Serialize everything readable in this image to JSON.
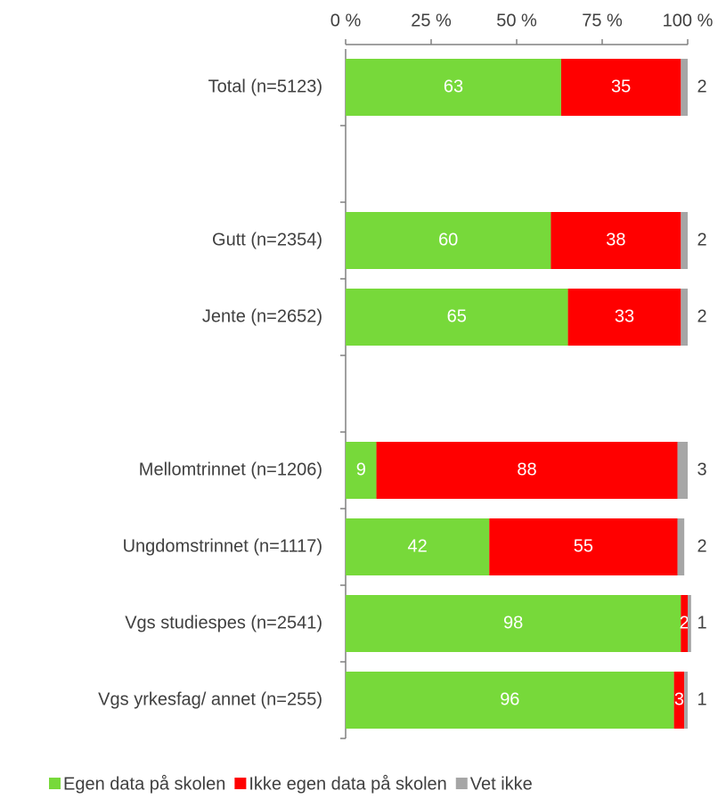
{
  "chart_data": {
    "type": "stacked_barh",
    "categories": [
      "Total (n=5123)",
      null,
      "Gutt (n=2354)",
      "Jente (n=2652)",
      null,
      "Mellomtrinnet (n=1206)",
      "Ungdomstrinnet (n=1117)",
      "Vgs studiespes (n=2541)",
      "Vgs yrkesfag/ annet (n=255)"
    ],
    "series": [
      {
        "name": "Egen data på skolen",
        "color": "#77d93a",
        "values": [
          63,
          null,
          60,
          65,
          null,
          9,
          42,
          98,
          96
        ]
      },
      {
        "name": "Ikke egen data på skolen",
        "color": "#ff0000",
        "values": [
          35,
          null,
          38,
          33,
          null,
          88,
          55,
          2,
          3
        ]
      },
      {
        "name": "Vet ikke",
        "color": "#a6a6a6",
        "values": [
          2,
          null,
          2,
          2,
          null,
          3,
          2,
          1,
          1
        ]
      }
    ],
    "xlim": [
      0,
      100
    ],
    "xticks": [
      {
        "value": 0,
        "label": "0 %"
      },
      {
        "value": 25,
        "label": "25 %"
      },
      {
        "value": 50,
        "label": "50 %"
      },
      {
        "value": 75,
        "label": "75 %"
      },
      {
        "value": 100,
        "label": "100 %"
      }
    ],
    "legend": "bottom"
  }
}
